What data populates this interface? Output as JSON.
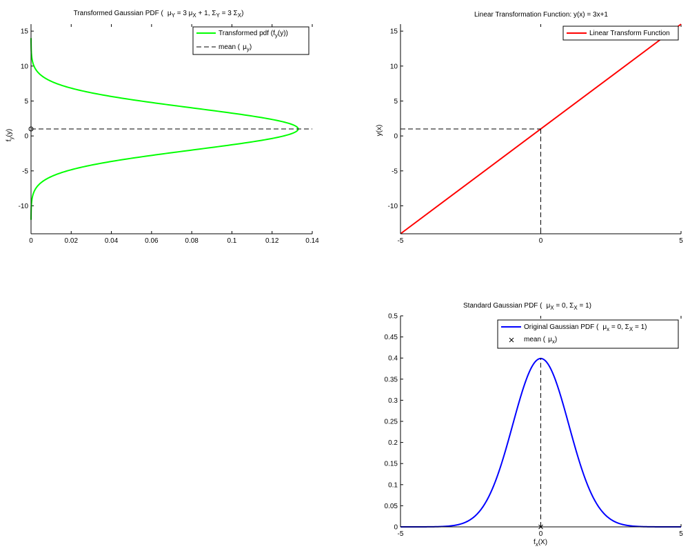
{
  "chart_data": [
    {
      "id": "transformed",
      "type": "line",
      "title": {
        "a": "Transformed Gaussian PDF (",
        "b": "μ",
        "c": "Y",
        "d": " = 3 μ",
        "e": "X",
        "f": " + 1,  Σ",
        "g": "Y",
        "h": " = 3 Σ",
        "i": "X",
        "j": ")"
      },
      "xlabel": "",
      "ylabel": {
        "a": "f",
        "b": "y",
        "c": "(y)"
      },
      "xlim": [
        0,
        0.14
      ],
      "ylim": [
        -14,
        16
      ],
      "xticks": [
        "0",
        "0.02",
        "0.04",
        "0.06",
        "0.08",
        "0.1",
        "0.12",
        "0.14"
      ],
      "yticks": [
        "-10",
        "-5",
        "0",
        "5",
        "10",
        "15"
      ],
      "legend": {
        "placement": "top-right",
        "entries": [
          {
            "label": {
              "a": "Transformed pdf (f",
              "b": "y",
              "c": "(y))"
            },
            "color": "#00ff00",
            "style": "solid"
          },
          {
            "label": {
              "a": "mean (",
              "b": "μ",
              "c": "y",
              "d": ")"
            },
            "color": "#000000",
            "style": "dashed"
          }
        ]
      },
      "curve": {
        "kind": "gaussian_pdf_vertical",
        "mean": 1,
        "sigma": 3,
        "y_from": -12,
        "y_to": 14,
        "color": "#00ff00"
      },
      "mean_line": {
        "y": 1,
        "x_from": 0,
        "x_to": 0.14
      },
      "marker": {
        "x": 0,
        "y": 1,
        "symbol": "circle"
      }
    },
    {
      "id": "linear",
      "type": "line",
      "title": "Linear Transformation Function: y(x) = 3x+1",
      "xlabel": "",
      "ylabel": "y(x)",
      "xlim": [
        -5,
        5
      ],
      "ylim": [
        -14,
        16
      ],
      "xticks": [
        "-5",
        "0",
        "5"
      ],
      "yticks": [
        "-10",
        "-5",
        "0",
        "5",
        "10",
        "15"
      ],
      "legend": {
        "placement": "top-right",
        "entries": [
          {
            "label": "Linear Transform Function",
            "color": "#ff0000",
            "style": "solid"
          }
        ]
      },
      "series": [
        {
          "x": [
            -5,
            5
          ],
          "y": [
            -14,
            16
          ],
          "color": "#ff0000"
        }
      ],
      "guide": {
        "x": 0,
        "y": 1
      }
    },
    {
      "id": "standard",
      "type": "line",
      "title": {
        "a": "Standard Gaussian PDF (",
        "b": "μ",
        "c": "X",
        "d": " = 0,  Σ",
        "e": "X",
        "f": " = 1)"
      },
      "xlabel": {
        "a": "f",
        "b": "x",
        "c": "(X)"
      },
      "ylabel": "",
      "xlim": [
        -5,
        5
      ],
      "ylim": [
        0,
        0.5
      ],
      "xticks": [
        "-5",
        "0",
        "5"
      ],
      "yticks": [
        "0",
        "0.05",
        "0.1",
        "0.15",
        "0.2",
        "0.25",
        "0.3",
        "0.35",
        "0.4",
        "0.45",
        "0.5"
      ],
      "legend": {
        "placement": "top-right",
        "entries": [
          {
            "label": {
              "a": "Original Gaussian PDF (",
              "b": "μ",
              "c": "x",
              "d": " = 0,  Σ",
              "e": "X",
              "f": " = 1)"
            },
            "color": "#0000ff",
            "style": "solid"
          },
          {
            "label": {
              "a": "mean (",
              "b": "μ",
              "c": "x",
              "d": ")"
            },
            "color": "#000000",
            "style": "marker-x"
          }
        ]
      },
      "curve": {
        "kind": "gaussian_pdf",
        "mean": 0,
        "sigma": 1,
        "x_from": -5,
        "x_to": 5,
        "color": "#0000ff"
      },
      "mean_line": {
        "x": 0,
        "y_from": 0,
        "y_to": 0.4
      },
      "marker": {
        "x": 0,
        "y": 0,
        "symbol": "x"
      }
    }
  ]
}
